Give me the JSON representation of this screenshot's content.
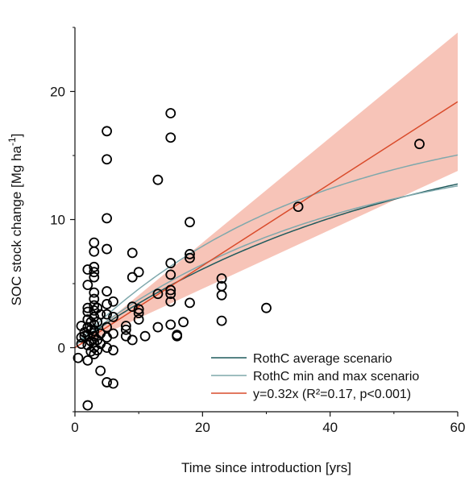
{
  "chart_data": {
    "type": "scatter",
    "xlabel": "Time since introduction [yrs]",
    "ylabel": "SOC stock change [Mg ha",
    "ylabel_unit_exp": "-1",
    "ylabel_close": "]",
    "xlim": [
      0,
      60
    ],
    "ylim": [
      -5,
      25
    ],
    "x_ticks": [
      0,
      20,
      40,
      60
    ],
    "y_ticks": [
      0,
      10,
      20
    ],
    "x_tick_labels": [
      "0",
      "20",
      "40",
      "60"
    ],
    "y_tick_labels": [
      "0",
      "10",
      "20"
    ],
    "grid": false,
    "legend_position": "bottom-right",
    "observations": [
      [
        0.5,
        -0.8
      ],
      [
        1,
        1.7
      ],
      [
        1,
        0.8
      ],
      [
        1,
        0.3
      ],
      [
        1.5,
        0.9
      ],
      [
        1.5,
        1.2
      ],
      [
        2,
        -4.5
      ],
      [
        2,
        -1.0
      ],
      [
        2,
        0.2
      ],
      [
        2,
        1.0
      ],
      [
        2,
        1.6
      ],
      [
        2,
        2.2
      ],
      [
        2,
        2.8
      ],
      [
        2,
        3.1
      ],
      [
        2,
        4.9
      ],
      [
        2,
        6.1
      ],
      [
        2.5,
        0.5
      ],
      [
        2.5,
        -0.3
      ],
      [
        2.5,
        1.4
      ],
      [
        2.5,
        2.0
      ],
      [
        3,
        -0.5
      ],
      [
        3,
        0.0
      ],
      [
        3,
        0.4
      ],
      [
        3,
        0.9
      ],
      [
        3,
        1.3
      ],
      [
        3,
        1.8
      ],
      [
        3,
        2.4
      ],
      [
        3,
        2.9
      ],
      [
        3,
        3.3
      ],
      [
        3,
        3.8
      ],
      [
        3,
        4.3
      ],
      [
        3,
        5.5
      ],
      [
        3,
        5.9
      ],
      [
        3,
        6.3
      ],
      [
        3,
        7.5
      ],
      [
        3,
        8.2
      ],
      [
        3.5,
        -0.2
      ],
      [
        3.5,
        0.6
      ],
      [
        3.5,
        2.0
      ],
      [
        3.5,
        3.1
      ],
      [
        4,
        -1.8
      ],
      [
        4,
        0.3
      ],
      [
        4,
        1.1
      ],
      [
        4,
        2.6
      ],
      [
        5,
        -2.7
      ],
      [
        5,
        0.0
      ],
      [
        5,
        0.8
      ],
      [
        5,
        1.6
      ],
      [
        5,
        2.6
      ],
      [
        5,
        3.4
      ],
      [
        5,
        4.4
      ],
      [
        5,
        7.7
      ],
      [
        5,
        10.1
      ],
      [
        5,
        14.7
      ],
      [
        5,
        16.9
      ],
      [
        6,
        -2.8
      ],
      [
        6,
        -0.2
      ],
      [
        6,
        1.1
      ],
      [
        6,
        2.4
      ],
      [
        6,
        3.6
      ],
      [
        8,
        0.9
      ],
      [
        8,
        1.4
      ],
      [
        8,
        1.7
      ],
      [
        9,
        0.6
      ],
      [
        9,
        3.2
      ],
      [
        9,
        5.5
      ],
      [
        9,
        7.4
      ],
      [
        10,
        2.2
      ],
      [
        10,
        2.7
      ],
      [
        10,
        3.0
      ],
      [
        10,
        5.9
      ],
      [
        11,
        0.9
      ],
      [
        13,
        1.6
      ],
      [
        13,
        4.2
      ],
      [
        13,
        13.1
      ],
      [
        15,
        1.8
      ],
      [
        15,
        3.6
      ],
      [
        15,
        4.2
      ],
      [
        15,
        4.5
      ],
      [
        15,
        5.7
      ],
      [
        15,
        6.6
      ],
      [
        15,
        16.4
      ],
      [
        15,
        18.3
      ],
      [
        16,
        0.9
      ],
      [
        16,
        1.0
      ],
      [
        17,
        2.0
      ],
      [
        18,
        3.5
      ],
      [
        18,
        7.0
      ],
      [
        18,
        7.3
      ],
      [
        18,
        9.8
      ],
      [
        23,
        2.1
      ],
      [
        23,
        4.1
      ],
      [
        23,
        4.8
      ],
      [
        23,
        5.4
      ],
      [
        30,
        3.1
      ],
      [
        35,
        11.0
      ],
      [
        54,
        15.9
      ]
    ],
    "series": [
      {
        "name": "RothC average scenario",
        "color": "#1f5a5c",
        "form": "asymptotic",
        "A": 18.0,
        "k": 0.02
      },
      {
        "name": "RothC min and max scenario",
        "color": "#7fa8ac",
        "form": "asymptotic",
        "A": 16.0,
        "k": 0.025,
        "min_max": "min"
      },
      {
        "name": "RothC min and max scenario",
        "color": "#7fa8ac",
        "form": "asymptotic",
        "A": 18.5,
        "k": 0.027,
        "min_max": "max"
      },
      {
        "name": "y=0.32x (R²=0.17, p<0.001)",
        "color": "#d94b2b",
        "form": "linear",
        "slope": 0.32
      }
    ],
    "confidence_band": {
      "color": "#f7c4b8",
      "slope_low": 0.23,
      "slope_high": 0.41
    },
    "marker_color": "#000000"
  }
}
